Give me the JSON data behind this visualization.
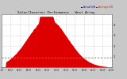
{
  "title": "Solar/Inverter Performance - West Array",
  "legend_actual": "Actual kW",
  "legend_average": "Average kW",
  "bg_color": "#c8c8c8",
  "plot_bg_color": "#ffffff",
  "bar_color": "#dd0000",
  "avg_line_color": "#00cccc",
  "avg_line_style": "--",
  "ylim": [
    0,
    5.0
  ],
  "grid_color": "#aaaaaa",
  "title_color": "#000000",
  "num_points": 300,
  "peak_value": 4.5,
  "avg_val": 0.9
}
